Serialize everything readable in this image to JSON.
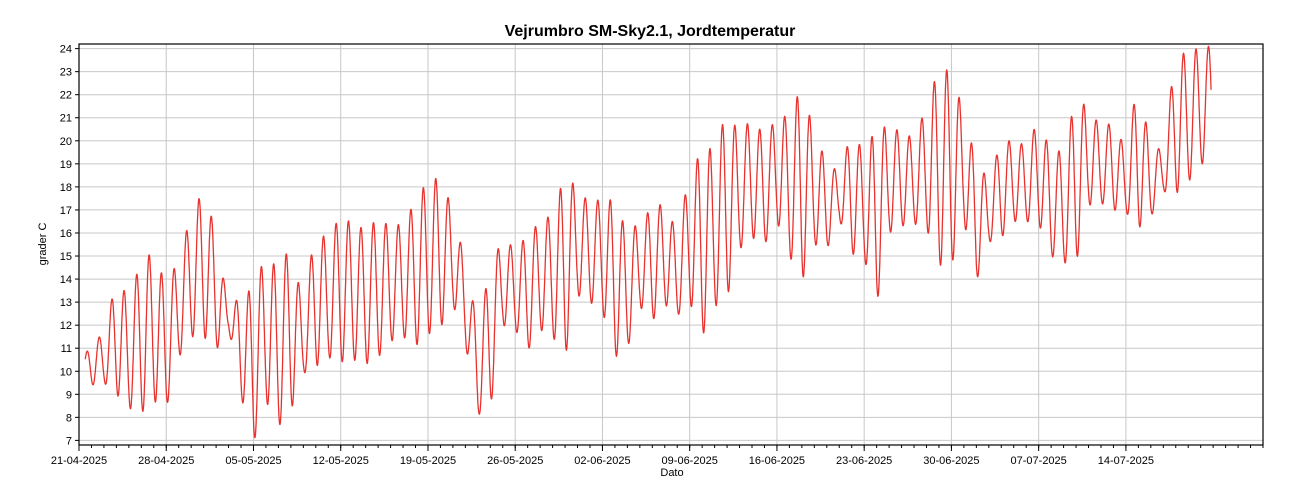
{
  "chart_data": {
    "type": "line",
    "title": "Vejrumbro SM-Sky2.1, Jordtemperatur",
    "xlabel": "Dato",
    "ylabel": "grader C",
    "xlim": [
      "2025-04-21",
      "2025-07-25"
    ],
    "ylim": [
      6.8,
      24.2
    ],
    "x_tick_labels": [
      "21-04-2025",
      "28-04-2025",
      "05-05-2025",
      "12-05-2025",
      "19-05-2025",
      "26-05-2025",
      "02-06-2025",
      "09-06-2025",
      "16-06-2025",
      "23-06-2025",
      "30-06-2025",
      "07-07-2025",
      "14-07-2025"
    ],
    "y_ticks": [
      7,
      8,
      9,
      10,
      11,
      12,
      13,
      14,
      15,
      16,
      17,
      18,
      19,
      20,
      21,
      22,
      23,
      24
    ],
    "grid": true,
    "series": [
      {
        "color": "#e8322e",
        "points": {
          "start_date": "2025-04-21",
          "daily_min": [
            9.5,
            9.4,
            9.5,
            9.0,
            8.4,
            8.2,
            8.7,
            8.4,
            10.6,
            11.5,
            11.5,
            10.9,
            11.9,
            8.9,
            6.9,
            8.7,
            7.6,
            8.3,
            9.9,
            10.2,
            10.6,
            10.4,
            10.5,
            10.3,
            10.6,
            11.3,
            11.5,
            11.1,
            11.6,
            11.9,
            12.9,
            11.2,
            8.1,
            8.4,
            12.0,
            11.8,
            10.9,
            11.8,
            11.5,
            10.6,
            13.3,
            13.0,
            12.6,
            10.6,
            11.0,
            12.8,
            12.2,
            12.9,
            12.4,
            13.0,
            11.5,
            12.8,
            13.2,
            15.3,
            15.8,
            15.5,
            16.5,
            15.0,
            13.9,
            15.5,
            15.3,
            16.6,
            15.1,
            14.9,
            12.9,
            16.0,
            16.3,
            16.4,
            16.2,
            14.6,
            14.6,
            16.5,
            13.9,
            15.6,
            15.8,
            16.5,
            16.5,
            16.4,
            15.0,
            14.7,
            14.7,
            17.2,
            17.3,
            17.0,
            16.9,
            16.2,
            16.7,
            17.8,
            17.7,
            18.2,
            19.0
          ],
          "daily_max": [
            10.1,
            11.3,
            11.6,
            14.0,
            13.2,
            14.8,
            15.2,
            13.7,
            14.9,
            16.8,
            17.9,
            16.0,
            12.7,
            13.3,
            13.6,
            15.1,
            14.4,
            15.5,
            12.8,
            16.3,
            15.6,
            16.9,
            16.3,
            16.2,
            16.6,
            16.3,
            16.4,
            17.4,
            18.3,
            18.4,
            17.0,
            14.7,
            12.0,
            14.5,
            15.8,
            15.3,
            15.9,
            16.5,
            16.8,
            18.6,
            17.9,
            17.3,
            17.5,
            17.4,
            16.0,
            16.5,
            17.1,
            17.3,
            16.0,
            18.6,
            19.6,
            19.7,
            21.3,
            20.3,
            21.0,
            20.2,
            21.0,
            21.1,
            22.4,
            20.3,
            19.1,
            18.6,
            20.4,
            19.5,
            20.6,
            20.6,
            20.4,
            20.1,
            21.5,
            23.2,
            23.0,
            21.2,
            19.1,
            18.3,
            20.0,
            20.0,
            19.8,
            20.9,
            19.5,
            19.6,
            21.9,
            21.4,
            20.6,
            20.8,
            19.6,
            22.7,
            19.6,
            19.7,
            23.8,
            23.8,
            24.1
          ]
        }
      }
    ]
  }
}
